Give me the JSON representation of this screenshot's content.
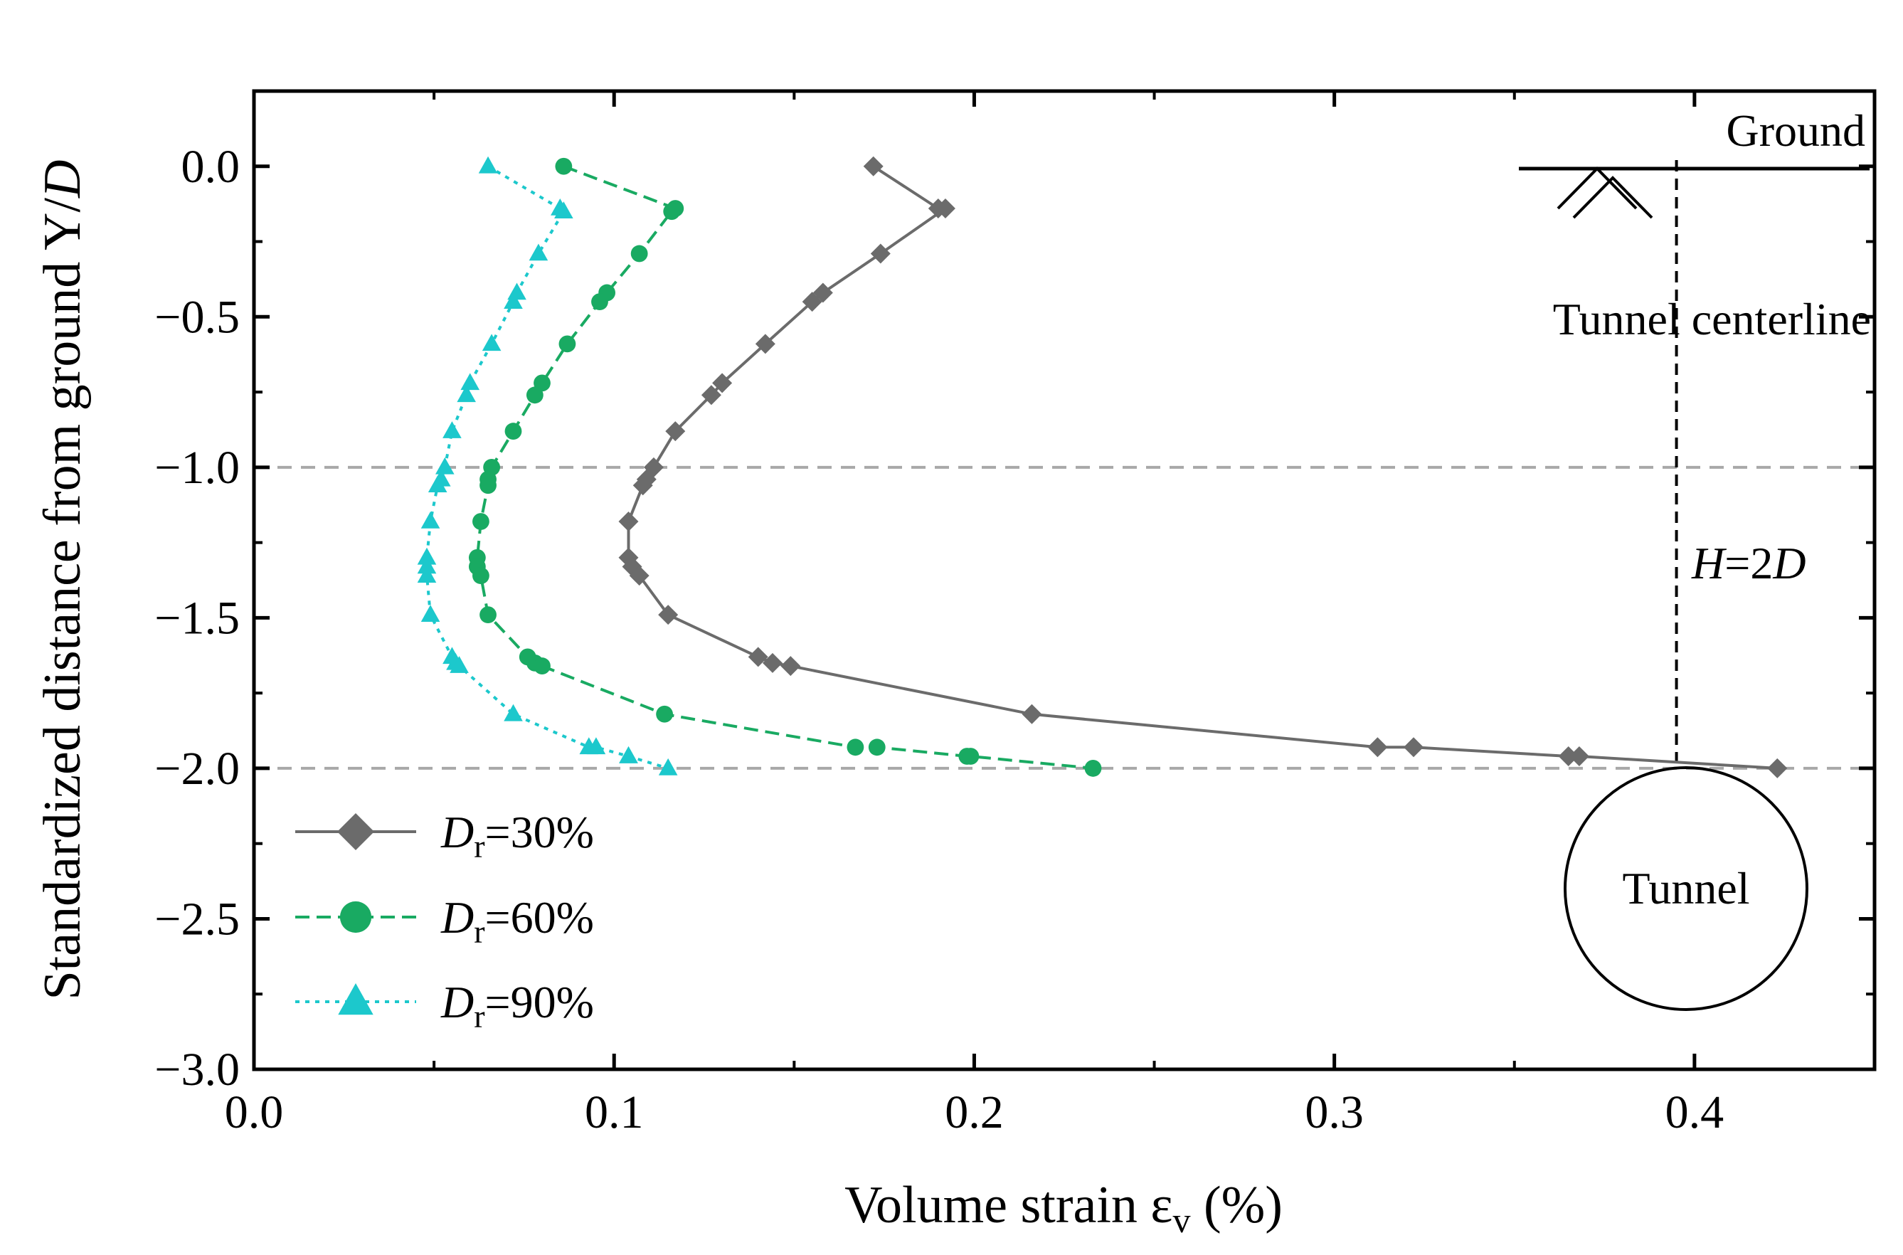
{
  "chart_data": {
    "type": "line",
    "xlabel": "Volume strain ε",
    "xlabel_sub": "v",
    "xlabel_unit": " (%)",
    "ylabel": "Standardized distance from ground Y/",
    "ylabel_italic": "D",
    "xlim": [
      0.0,
      0.45
    ],
    "ylim": [
      -3.0,
      0.25
    ],
    "x_ticks": [
      "0.0",
      "0.1",
      "0.2",
      "0.3",
      "0.4"
    ],
    "y_ticks": [
      "0.0",
      "−0.5",
      "−1.0",
      "−1.5",
      "−2.0",
      "−2.5",
      "−3.0"
    ],
    "legend_position": "bottom-left",
    "reference_lines": [
      -1.0,
      -2.0
    ],
    "series": [
      {
        "name": "D",
        "name_sub": "r",
        "name_suffix": "=30%",
        "color": "#6b6b6b",
        "marker": "diamond",
        "line_style": "solid",
        "points": [
          [
            0.172,
            0.0
          ],
          [
            0.19,
            -0.14
          ],
          [
            0.192,
            -0.14
          ],
          [
            0.174,
            -0.29
          ],
          [
            0.158,
            -0.42
          ],
          [
            0.155,
            -0.45
          ],
          [
            0.142,
            -0.59
          ],
          [
            0.13,
            -0.72
          ],
          [
            0.127,
            -0.76
          ],
          [
            0.117,
            -0.88
          ],
          [
            0.111,
            -1.0
          ],
          [
            0.109,
            -1.04
          ],
          [
            0.108,
            -1.06
          ],
          [
            0.104,
            -1.18
          ],
          [
            0.104,
            -1.3
          ],
          [
            0.105,
            -1.33
          ],
          [
            0.107,
            -1.36
          ],
          [
            0.115,
            -1.49
          ],
          [
            0.14,
            -1.63
          ],
          [
            0.144,
            -1.65
          ],
          [
            0.149,
            -1.66
          ],
          [
            0.216,
            -1.82
          ],
          [
            0.312,
            -1.93
          ],
          [
            0.322,
            -1.93
          ],
          [
            0.365,
            -1.96
          ],
          [
            0.368,
            -1.96
          ],
          [
            0.423,
            -2.0
          ]
        ]
      },
      {
        "name": "D",
        "name_sub": "r",
        "name_suffix": "=60%",
        "color": "#19aa62",
        "marker": "circle",
        "line_style": "dashed",
        "points": [
          [
            0.086,
            0.0
          ],
          [
            0.117,
            -0.14
          ],
          [
            0.116,
            -0.15
          ],
          [
            0.107,
            -0.29
          ],
          [
            0.098,
            -0.42
          ],
          [
            0.096,
            -0.45
          ],
          [
            0.087,
            -0.59
          ],
          [
            0.08,
            -0.72
          ],
          [
            0.078,
            -0.76
          ],
          [
            0.072,
            -0.88
          ],
          [
            0.066,
            -1.0
          ],
          [
            0.065,
            -1.04
          ],
          [
            0.065,
            -1.06
          ],
          [
            0.063,
            -1.18
          ],
          [
            0.062,
            -1.3
          ],
          [
            0.062,
            -1.33
          ],
          [
            0.063,
            -1.36
          ],
          [
            0.065,
            -1.49
          ],
          [
            0.076,
            -1.63
          ],
          [
            0.078,
            -1.65
          ],
          [
            0.08,
            -1.66
          ],
          [
            0.114,
            -1.82
          ],
          [
            0.167,
            -1.93
          ],
          [
            0.173,
            -1.93
          ],
          [
            0.198,
            -1.96
          ],
          [
            0.199,
            -1.96
          ],
          [
            0.233,
            -2.0
          ]
        ]
      },
      {
        "name": "D",
        "name_sub": "r",
        "name_suffix": "=90%",
        "color": "#1cc8cc",
        "marker": "triangle",
        "line_style": "dotted",
        "points": [
          [
            0.065,
            0.0
          ],
          [
            0.085,
            -0.14
          ],
          [
            0.086,
            -0.15
          ],
          [
            0.079,
            -0.29
          ],
          [
            0.073,
            -0.42
          ],
          [
            0.072,
            -0.45
          ],
          [
            0.066,
            -0.59
          ],
          [
            0.06,
            -0.72
          ],
          [
            0.059,
            -0.76
          ],
          [
            0.055,
            -0.88
          ],
          [
            0.053,
            -1.0
          ],
          [
            0.052,
            -1.04
          ],
          [
            0.051,
            -1.06
          ],
          [
            0.049,
            -1.18
          ],
          [
            0.048,
            -1.3
          ],
          [
            0.048,
            -1.33
          ],
          [
            0.048,
            -1.36
          ],
          [
            0.049,
            -1.49
          ],
          [
            0.055,
            -1.63
          ],
          [
            0.056,
            -1.65
          ],
          [
            0.057,
            -1.66
          ],
          [
            0.072,
            -1.82
          ],
          [
            0.093,
            -1.93
          ],
          [
            0.095,
            -1.93
          ],
          [
            0.104,
            -1.96
          ],
          [
            0.104,
            -1.96
          ],
          [
            0.115,
            -2.0
          ]
        ]
      }
    ],
    "annotations": {
      "ground_label": "Ground",
      "centerline_label": "Tunnel centerline",
      "depth_label_italic_h": "H",
      "depth_label_mid": "=2",
      "depth_label_italic_d": "D",
      "tunnel_label": "Tunnel",
      "centerline_x": 0.395
    }
  }
}
